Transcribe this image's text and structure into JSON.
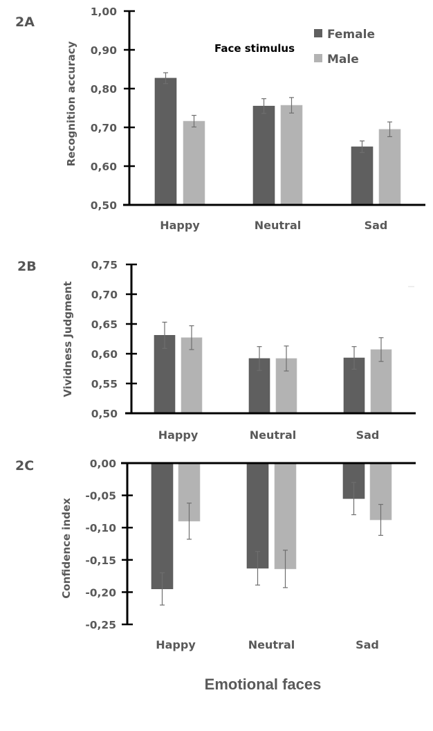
{
  "figure": {
    "xtitle": "Emotional faces",
    "legend_title": "Face stimulus",
    "colors": {
      "Female": "#5f5f5f",
      "Male": "#b3b3b3",
      "axis": "#000000",
      "errorbar": "#6e6e6e",
      "text": "#595959"
    }
  },
  "chart_data": [
    {
      "type": "bar",
      "panel": "2A",
      "title": "",
      "xlabel": "",
      "ylabel": "Recognition accuracy",
      "categories": [
        "Happy",
        "Neutral",
        "Sad"
      ],
      "ylim": [
        0.5,
        1.0
      ],
      "yticks": [
        "0,50",
        "0,60",
        "0,70",
        "0,80",
        "0,90",
        "1,00"
      ],
      "ytick_values": [
        0.5,
        0.6,
        0.7,
        0.8,
        0.9,
        1.0
      ],
      "legend": {
        "title": "Face stimulus",
        "entries": [
          "Female",
          "Male"
        ],
        "placement": "top-right"
      },
      "series": [
        {
          "name": "Female",
          "values": [
            0.827,
            0.755,
            0.65
          ],
          "errors": [
            0.014,
            0.019,
            0.015
          ]
        },
        {
          "name": "Male",
          "values": [
            0.716,
            0.757,
            0.695
          ],
          "errors": [
            0.015,
            0.02,
            0.019
          ]
        }
      ],
      "grid": false
    },
    {
      "type": "bar",
      "panel": "2B",
      "title": "",
      "xlabel": "",
      "ylabel": "Vividness Judgment",
      "categories": [
        "Happy",
        "Neutral",
        "Sad"
      ],
      "ylim": [
        0.5,
        0.75
      ],
      "yticks": [
        "0,50",
        "0,55",
        "0,60",
        "0,65",
        "0,70",
        "0,75"
      ],
      "ytick_values": [
        0.5,
        0.55,
        0.6,
        0.65,
        0.7,
        0.75
      ],
      "series": [
        {
          "name": "Female",
          "values": [
            0.631,
            0.592,
            0.593
          ],
          "errors": [
            0.022,
            0.02,
            0.019
          ]
        },
        {
          "name": "Male",
          "values": [
            0.627,
            0.592,
            0.607
          ],
          "errors": [
            0.02,
            0.021,
            0.02
          ]
        }
      ],
      "grid": false
    },
    {
      "type": "bar",
      "panel": "2C",
      "title": "",
      "xlabel": "Emotional faces",
      "ylabel": "Confidence index",
      "categories": [
        "Happy",
        "Neutral",
        "Sad"
      ],
      "ylim": [
        -0.25,
        0.0
      ],
      "yticks": [
        "-0,25",
        "-0,20",
        "-0,15",
        "-0,10",
        "-0,05",
        "0,00"
      ],
      "ytick_values": [
        -0.25,
        -0.2,
        -0.15,
        -0.1,
        -0.05,
        0.0
      ],
      "series": [
        {
          "name": "Female",
          "values": [
            -0.195,
            -0.163,
            -0.055
          ],
          "errors": [
            0.025,
            0.026,
            0.025
          ]
        },
        {
          "name": "Male",
          "values": [
            -0.09,
            -0.164,
            -0.088
          ],
          "errors": [
            0.028,
            0.029,
            0.024
          ]
        }
      ],
      "grid": false
    }
  ]
}
